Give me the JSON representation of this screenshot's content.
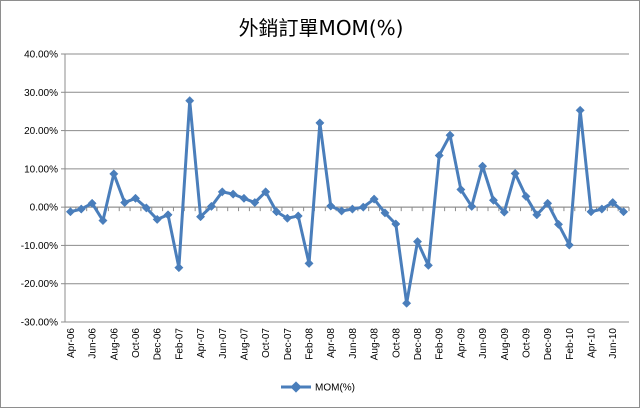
{
  "chart_data": {
    "type": "line",
    "title": "外銷訂單MOM(%)",
    "xlabel": "",
    "ylabel": "",
    "ylim": [
      -30,
      40
    ],
    "y_ticks": [
      40,
      30,
      20,
      10,
      0,
      -10,
      -20,
      -30
    ],
    "y_tick_labels": [
      "40.00%",
      "30.00%",
      "20.00%",
      "10.00%",
      "0.00%",
      "-10.00%",
      "-20.00%",
      "-30.00%"
    ],
    "grid": true,
    "legend_position": "bottom",
    "categories": [
      "Apr-06",
      "May-06",
      "Jun-06",
      "Jul-06",
      "Aug-06",
      "Sep-06",
      "Oct-06",
      "Nov-06",
      "Dec-06",
      "Jan-07",
      "Feb-07",
      "Mar-07",
      "Apr-07",
      "May-07",
      "Jun-07",
      "Jul-07",
      "Aug-07",
      "Sep-07",
      "Oct-07",
      "Nov-07",
      "Dec-07",
      "Jan-08",
      "Feb-08",
      "Mar-08",
      "Apr-08",
      "May-08",
      "Jun-08",
      "Jul-08",
      "Aug-08",
      "Sep-08",
      "Oct-08",
      "Nov-08",
      "Dec-08",
      "Jan-09",
      "Feb-09",
      "Mar-09",
      "Apr-09",
      "May-09",
      "Jun-09",
      "Jul-09",
      "Aug-09",
      "Sep-09",
      "Oct-09",
      "Nov-09",
      "Dec-09",
      "Jan-10",
      "Feb-10",
      "Mar-10",
      "Apr-10",
      "May-10",
      "Jun-10",
      "Jul-10"
    ],
    "x_tick_labels": [
      "Apr-06",
      "Jun-06",
      "Aug-06",
      "Oct-06",
      "Dec-06",
      "Feb-07",
      "Apr-07",
      "Jun-07",
      "Aug-07",
      "Oct-07",
      "Dec-07",
      "Feb-08",
      "Apr-08",
      "Jun-08",
      "Aug-08",
      "Oct-08",
      "Dec-08",
      "Feb-09",
      "Apr-09",
      "Jun-09",
      "Aug-09",
      "Oct-09",
      "Dec-09",
      "Feb-10",
      "Apr-10",
      "Jun-10"
    ],
    "series": [
      {
        "name": "MOM(%)",
        "color": "#4a7ebb",
        "values": [
          -1.2,
          -0.5,
          1.0,
          -3.5,
          8.7,
          1.2,
          2.3,
          -0.2,
          -3.2,
          -2.0,
          -15.8,
          27.8,
          -2.5,
          0.2,
          4.0,
          3.4,
          2.3,
          1.2,
          4.0,
          -1.2,
          -2.9,
          -2.3,
          -14.7,
          22.0,
          0.3,
          -1.0,
          -0.5,
          0.0,
          2.1,
          -1.5,
          -4.4,
          -25.1,
          -9.0,
          -15.2,
          13.5,
          18.8,
          4.6,
          0.2,
          10.7,
          1.8,
          -1.3,
          8.8,
          2.8,
          -2.0,
          1.0,
          -4.5,
          -9.9,
          25.3,
          -1.2,
          -0.5,
          1.2,
          -1.2
        ]
      }
    ]
  }
}
